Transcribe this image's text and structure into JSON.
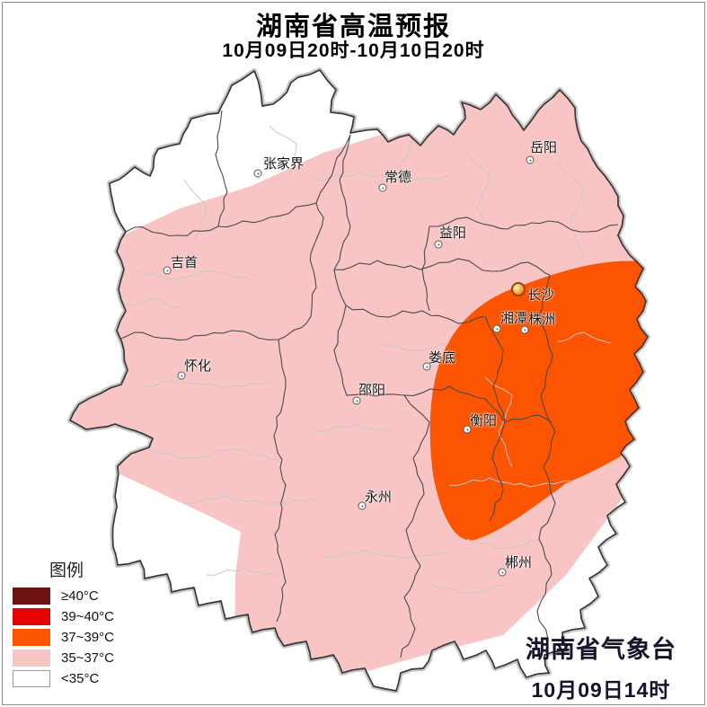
{
  "header": {
    "title": "湖南省高温预报",
    "subtitle": "10月09日20时-10月10日20时"
  },
  "legend": {
    "title": "图例",
    "items": [
      {
        "label": "≥40°C",
        "color": "#6e1212"
      },
      {
        "label": "39~40°C",
        "color": "#e60000"
      },
      {
        "label": "37~39°C",
        "color": "#fc5400"
      },
      {
        "label": "35~37°C",
        "color": "#f9c4c4"
      },
      {
        "label": "<35°C",
        "color": "#ffffff"
      }
    ]
  },
  "map": {
    "region_name": "湖南省",
    "zone_colors": {
      "above_40": "#6e1212",
      "39_40": "#e60000",
      "37_39": "#fc5400",
      "35_37": "#f9c4c4",
      "below_35": "#ffffff"
    },
    "cities": [
      {
        "name": "张家界",
        "marker": [
          287,
          193
        ],
        "label": [
          293,
          175
        ],
        "capital": false
      },
      {
        "name": "常德",
        "marker": [
          426,
          209
        ],
        "label": [
          428,
          190
        ],
        "capital": false
      },
      {
        "name": "岳阳",
        "marker": [
          590,
          178
        ],
        "label": [
          590,
          157
        ],
        "capital": false
      },
      {
        "name": "益阳",
        "marker": [
          488,
          272
        ],
        "label": [
          489,
          252
        ],
        "capital": false
      },
      {
        "name": "吉首",
        "marker": [
          186,
          301
        ],
        "label": [
          190,
          285
        ],
        "capital": false
      },
      {
        "name": "长沙",
        "marker": [
          577,
          322
        ],
        "label": [
          587,
          321
        ],
        "capital": true
      },
      {
        "name": "湘潭",
        "marker": [
          553,
          366
        ],
        "label": [
          557,
          347
        ],
        "capital": false
      },
      {
        "name": "株洲",
        "marker": [
          584,
          367
        ],
        "label": [
          588,
          348
        ],
        "capital": false
      },
      {
        "name": "娄底",
        "marker": [
          475,
          408
        ],
        "label": [
          477,
          391
        ],
        "capital": false
      },
      {
        "name": "怀化",
        "marker": [
          202,
          418
        ],
        "label": [
          205,
          400
        ],
        "capital": false
      },
      {
        "name": "邵阳",
        "marker": [
          397,
          446
        ],
        "label": [
          399,
          427
        ],
        "capital": false
      },
      {
        "name": "衡阳",
        "marker": [
          520,
          478
        ],
        "label": [
          523,
          461
        ],
        "capital": false
      },
      {
        "name": "永州",
        "marker": [
          403,
          563
        ],
        "label": [
          406,
          546
        ],
        "capital": false
      },
      {
        "name": "郴州",
        "marker": [
          559,
          637
        ],
        "label": [
          562,
          619
        ],
        "capital": false
      }
    ]
  },
  "attribution": {
    "org": "湖南省气象台",
    "time": "10月09日14时"
  }
}
